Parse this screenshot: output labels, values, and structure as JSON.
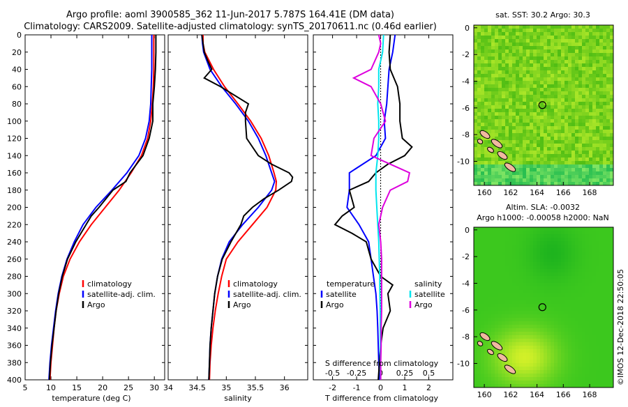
{
  "titles": {
    "line1": "Argo profile: aoml 3900585_362 11-Jun-2017 5.787S 164.41E (DM data)",
    "line2": "Climatology: CARS2009. Satellite-adjusted climatology: synTS_20170611.nc (0.46d earlier)"
  },
  "map_titles": {
    "sst": "sat. SST: 30.2 Argo: 30.3",
    "sla1": "Altim. SLA: -0.0032",
    "sla2": "Argo h1000: -0.00058 h2000: NaN"
  },
  "credit": "©IMOS 12-Dec-2018 22:50:05",
  "colors": {
    "climatology": "#ff0000",
    "satellite": "#0000ff",
    "argo": "#000000",
    "sal_sat": "#00e5ee",
    "sal_clim": "#dd00dd"
  },
  "chart_data": [
    {
      "type": "line",
      "name": "temperature",
      "xlabel": "temperature (deg C)",
      "ylabel": "",
      "xlim": [
        5,
        32
      ],
      "ylim": [
        400,
        0
      ],
      "x_ticks": [
        "5",
        "10",
        "15",
        "20",
        "25",
        "30"
      ],
      "y_ticks": [
        "0",
        "20",
        "40",
        "60",
        "80",
        "100",
        "120",
        "140",
        "160",
        "180",
        "200",
        "220",
        "240",
        "260",
        "280",
        "300",
        "320",
        "340",
        "360",
        "380",
        "400"
      ],
      "legend": [
        "climatology",
        "satellite-adj. clim.",
        "Argo"
      ],
      "series": [
        {
          "name": "climatology",
          "depth": [
            0,
            20,
            40,
            60,
            80,
            100,
            120,
            140,
            160,
            180,
            200,
            220,
            240,
            260,
            280,
            300,
            320,
            340,
            360,
            380,
            400
          ],
          "values": [
            29.9,
            29.9,
            29.9,
            29.8,
            29.6,
            29.3,
            28.7,
            27.5,
            25.5,
            23.2,
            20.5,
            17.8,
            15.5,
            13.7,
            12.4,
            11.6,
            11.0,
            10.6,
            10.3,
            10.0,
            9.8
          ]
        },
        {
          "name": "satellite-adj. clim.",
          "depth": [
            0,
            20,
            40,
            60,
            80,
            100,
            120,
            140,
            160,
            180,
            200,
            220,
            240,
            260,
            280,
            300,
            320,
            340,
            360,
            380,
            400
          ],
          "values": [
            29.5,
            29.5,
            29.5,
            29.4,
            29.3,
            29.0,
            28.3,
            27.0,
            24.7,
            21.8,
            18.7,
            16.2,
            14.5,
            13.1,
            12.1,
            11.4,
            10.9,
            10.5,
            10.1,
            9.8,
            9.6
          ]
        },
        {
          "name": "Argo",
          "depth": [
            0,
            20,
            40,
            60,
            80,
            100,
            120,
            140,
            160,
            170,
            180,
            200,
            210,
            220,
            240,
            260,
            280,
            300,
            320,
            340,
            360,
            380,
            400
          ],
          "values": [
            30.3,
            30.3,
            30.2,
            30.0,
            29.7,
            29.7,
            29.0,
            27.8,
            25.3,
            24.5,
            22.0,
            19.3,
            17.8,
            16.8,
            14.8,
            13.2,
            12.2,
            11.5,
            11.0,
            10.6,
            10.2,
            9.9,
            9.7
          ]
        }
      ]
    },
    {
      "type": "line",
      "name": "salinity",
      "xlabel": "salinity",
      "xlim": [
        34,
        36.4
      ],
      "ylim": [
        400,
        0
      ],
      "x_ticks": [
        "34",
        "34.5",
        "35",
        "35.5",
        "36"
      ],
      "legend": [
        "climatology",
        "satellite-adj. clim.",
        "Argo"
      ],
      "series": [
        {
          "name": "climatology",
          "depth": [
            0,
            10,
            20,
            40,
            60,
            80,
            100,
            120,
            140,
            160,
            170,
            180,
            200,
            220,
            240,
            260,
            280,
            300,
            320,
            340,
            360,
            380,
            400
          ],
          "values": [
            34.6,
            34.6,
            34.63,
            34.78,
            34.97,
            35.2,
            35.42,
            35.6,
            35.73,
            35.82,
            35.86,
            35.85,
            35.7,
            35.45,
            35.2,
            35.0,
            34.92,
            34.86,
            34.81,
            34.77,
            34.74,
            34.72,
            34.71
          ]
        },
        {
          "name": "satellite-adj. clim.",
          "depth": [
            0,
            10,
            20,
            40,
            60,
            80,
            100,
            120,
            140,
            160,
            170,
            180,
            200,
            220,
            240,
            260,
            280,
            300,
            320,
            340,
            360,
            380,
            400
          ],
          "values": [
            34.58,
            34.59,
            34.61,
            34.72,
            34.92,
            35.16,
            35.38,
            35.55,
            35.68,
            35.78,
            35.83,
            35.78,
            35.55,
            35.28,
            35.05,
            34.92,
            34.85,
            34.8,
            34.77,
            34.74,
            34.72,
            34.71,
            34.7
          ]
        },
        {
          "name": "Argo",
          "depth": [
            0,
            10,
            20,
            30,
            40,
            50,
            60,
            80,
            90,
            100,
            120,
            140,
            150,
            160,
            165,
            170,
            180,
            190,
            200,
            210,
            220,
            240,
            260,
            280,
            300,
            320,
            340,
            360,
            380,
            400
          ],
          "values": [
            34.58,
            34.6,
            34.62,
            34.68,
            34.75,
            34.62,
            34.9,
            35.38,
            35.33,
            35.33,
            35.35,
            35.55,
            35.78,
            36.08,
            36.14,
            36.12,
            35.9,
            35.65,
            35.45,
            35.3,
            35.25,
            35.08,
            34.93,
            34.85,
            34.8,
            34.77,
            34.74,
            34.72,
            34.71,
            34.7
          ]
        }
      ]
    },
    {
      "type": "line",
      "name": "differences",
      "xlabel": "T difference from climatology",
      "xlabel_top": "S difference from climatology",
      "xlim": [
        -2.8,
        3.0
      ],
      "ylim": [
        400,
        0
      ],
      "x_ticks": [
        "-2",
        "-1",
        "0",
        "1",
        "2"
      ],
      "x2_ticks": [
        "-0.5",
        "-0.25",
        "0",
        "0.25",
        "0.5"
      ],
      "x2lim": [
        -0.7,
        0.75
      ],
      "legend_left_title": "temperature",
      "legend_right_title": "salinity",
      "legend_left": [
        "satellite",
        "Argo"
      ],
      "legend_right": [
        "satellite",
        "Argo"
      ],
      "series": [
        {
          "name": "T satellite",
          "axis": "T",
          "depth": [
            0,
            20,
            40,
            60,
            80,
            100,
            120,
            140,
            160,
            180,
            200,
            220,
            240,
            260,
            280,
            300,
            320,
            340,
            360,
            380,
            400
          ],
          "values": [
            0.6,
            0.5,
            0.35,
            0.3,
            0.25,
            0.15,
            0.2,
            -0.2,
            -1.3,
            -1.3,
            -1.4,
            -0.9,
            -0.5,
            -0.4,
            -0.3,
            -0.2,
            -0.15,
            -0.12,
            -0.1,
            -0.08,
            -0.05
          ]
        },
        {
          "name": "T Argo",
          "axis": "T",
          "depth": [
            0,
            20,
            40,
            60,
            80,
            100,
            120,
            130,
            140,
            150,
            160,
            170,
            180,
            190,
            200,
            210,
            220,
            230,
            240,
            260,
            280,
            290,
            300,
            320,
            340,
            360,
            380,
            400
          ],
          "values": [
            0.4,
            0.35,
            0.4,
            0.7,
            0.8,
            0.8,
            0.9,
            1.3,
            1.0,
            0.3,
            -0.2,
            -0.5,
            -1.3,
            -1.2,
            -1.1,
            -1.6,
            -1.9,
            -1.2,
            -0.6,
            -0.4,
            0.0,
            0.5,
            0.3,
            0.4,
            0.1,
            0.0,
            -0.05,
            -0.1
          ]
        },
        {
          "name": "S satellite",
          "axis": "S",
          "depth": [
            0,
            20,
            40,
            60,
            80,
            100,
            120,
            140,
            160,
            180,
            200,
            220,
            240,
            260,
            280,
            300,
            320,
            340,
            360,
            380,
            400
          ],
          "values": [
            0.03,
            0.02,
            -0.02,
            -0.02,
            -0.03,
            -0.02,
            -0.02,
            -0.03,
            -0.05,
            -0.05,
            -0.04,
            -0.03,
            -0.02,
            -0.015,
            -0.01,
            -0.008,
            -0.005,
            -0.004,
            -0.003,
            -0.002,
            -0.002
          ]
        },
        {
          "name": "S Argo",
          "axis": "S",
          "depth": [
            0,
            10,
            20,
            40,
            50,
            60,
            80,
            100,
            120,
            140,
            150,
            160,
            170,
            180,
            200,
            220,
            240,
            260,
            280,
            300,
            320,
            340,
            360,
            380,
            400
          ],
          "values": [
            -0.02,
            0.0,
            -0.02,
            -0.1,
            -0.28,
            -0.1,
            0.0,
            0.05,
            -0.07,
            -0.1,
            0.1,
            0.3,
            0.28,
            0.1,
            0.02,
            -0.02,
            0.0,
            0.01,
            0.01,
            0.01,
            0.01,
            0.005,
            0.005,
            0.0,
            0.0
          ]
        }
      ]
    },
    {
      "type": "heatmap",
      "name": "sst-map",
      "x_ticks": [
        "160",
        "162",
        "164",
        "166",
        "168"
      ],
      "y_ticks": [
        "0",
        "-2",
        "-4",
        "-6",
        "-8",
        "-10"
      ],
      "xlim": [
        159.2,
        169.8
      ],
      "ylim": [
        -11.8,
        0.2
      ],
      "argo_position": [
        164.41,
        -5.787
      ]
    },
    {
      "type": "heatmap",
      "name": "sla-map",
      "x_ticks": [
        "160",
        "162",
        "164",
        "166",
        "168"
      ],
      "y_ticks": [
        "0",
        "-2",
        "-4",
        "-6",
        "-8",
        "-10"
      ],
      "xlim": [
        159.2,
        169.8
      ],
      "ylim": [
        -11.8,
        0.2
      ],
      "argo_position": [
        164.41,
        -5.787
      ]
    }
  ]
}
